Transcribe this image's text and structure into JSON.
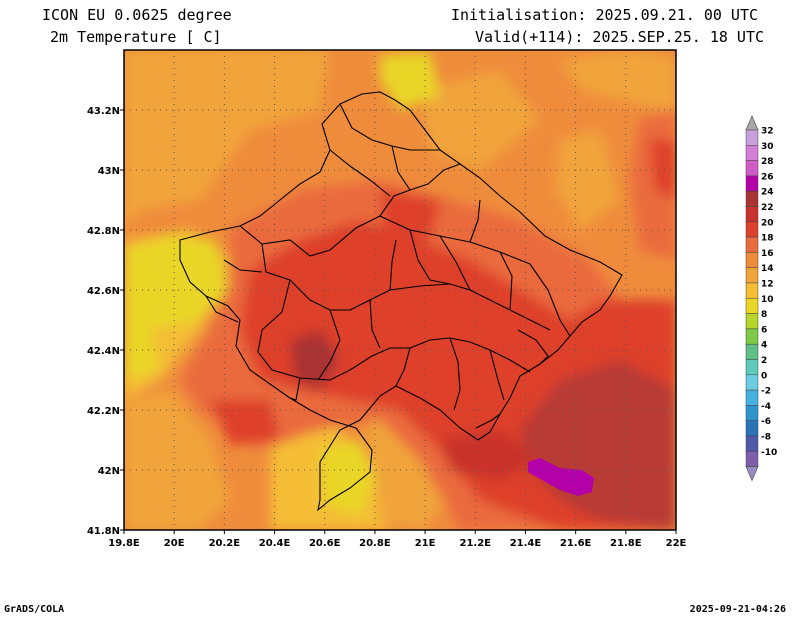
{
  "header": {
    "model": "ICON EU 0.0625 degree",
    "variable": "2m Temperature [ C]",
    "init": "Initialisation: 2025.09.21. 00 UTC",
    "valid": "Valid(+114): 2025.SEP.25. 18 UTC"
  },
  "footer": {
    "left": "GrADS/COLA",
    "right": "2025-09-21-04:26"
  },
  "map": {
    "lon_labels": [
      "19.8E",
      "20E",
      "20.2E",
      "20.4E",
      "20.6E",
      "20.8E",
      "21E",
      "21.2E",
      "21.4E",
      "21.6E",
      "21.8E",
      "22E"
    ],
    "lat_labels": [
      "43.2N",
      "43N",
      "42.8N",
      "42.6N",
      "42.4N",
      "42.2N",
      "42N",
      "41.8N"
    ],
    "colorbar": {
      "levels": [
        "32",
        "30",
        "28",
        "26",
        "24",
        "22",
        "20",
        "18",
        "16",
        "14",
        "12",
        "10",
        "8",
        "6",
        "4",
        "2",
        "0",
        "-2",
        "-4",
        "-6",
        "-8",
        "-10"
      ],
      "colors": [
        "#c7a0dc",
        "#d47fd6",
        "#d35bc9",
        "#b400a9",
        "#a93330",
        "#c9322c",
        "#de402b",
        "#ea6b3e",
        "#ef8c3c",
        "#f1a43a",
        "#f4bd34",
        "#e9d625",
        "#b6d429",
        "#7fc948",
        "#5fbf86",
        "#5ccabc",
        "#6bcde2",
        "#44b2e0",
        "#2d93cd",
        "#2a73b6",
        "#4d59a7",
        "#7e5eac"
      ]
    }
  }
}
